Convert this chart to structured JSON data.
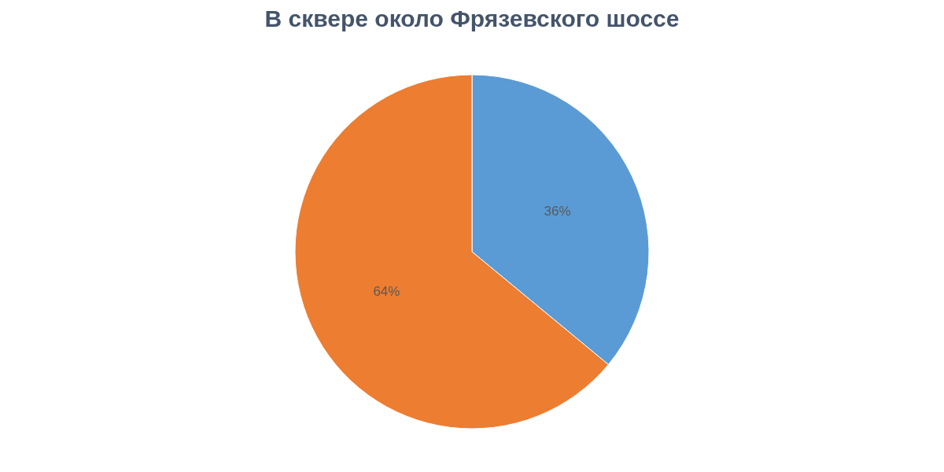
{
  "chart_data": {
    "type": "pie",
    "title": "В сквере около Фрязевского шоссе",
    "categories": [
      null,
      null
    ],
    "values": [
      36,
      64
    ],
    "colors": [
      "#5b9bd5",
      "#ed7d31"
    ],
    "value_labels": [
      "36%",
      "64%"
    ],
    "legend": false
  }
}
